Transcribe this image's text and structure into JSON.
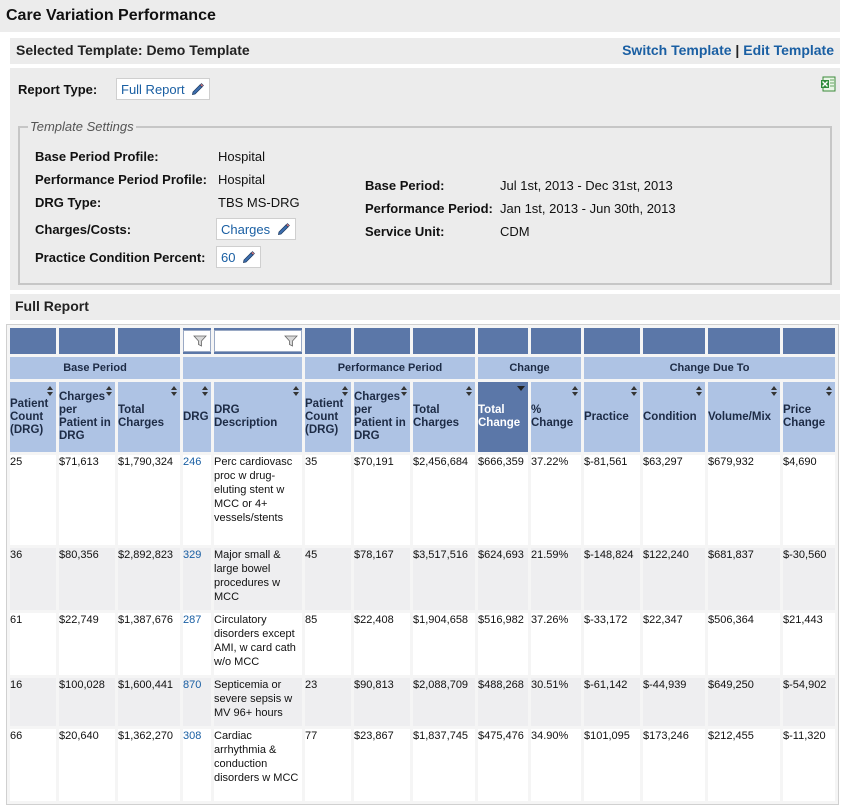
{
  "page_title": "Care Variation Performance",
  "template": {
    "label": "Selected Template: Demo Template",
    "switch_link": "Switch Template",
    "separator": "|",
    "edit_link": "Edit Template"
  },
  "report_type": {
    "label": "Report Type:",
    "value": "Full Report"
  },
  "template_settings": {
    "legend": "Template Settings",
    "left": [
      {
        "label": "Base Period Profile:",
        "value": "Hospital"
      },
      {
        "label": "Performance Period Profile:",
        "value": "Hospital"
      },
      {
        "label": "DRG Type:",
        "value": "TBS MS-DRG"
      },
      {
        "label": "Charges/Costs:",
        "value": "Charges"
      },
      {
        "label": "Practice Condition Percent:",
        "value": "60"
      }
    ],
    "right": [
      {
        "label": "Base Period:",
        "value": "Jul 1st, 2013 - Dec 31st, 2013"
      },
      {
        "label": "Performance Period:",
        "value": "Jan 1st, 2013 - Jun 30th, 2013"
      },
      {
        "label": "Service Unit:",
        "value": "CDM"
      }
    ]
  },
  "section_title": "Full Report",
  "table": {
    "groups": {
      "base": "Base Period",
      "performance": "Performance Period",
      "change": "Change",
      "change_due": "Change Due To"
    },
    "headers": [
      "Patient Count (DRG)",
      "Charges per Patient in DRG",
      "Total Charges",
      "DRG",
      "DRG Description",
      "Patient Count (DRG)",
      "Charges per Patient in DRG",
      "Total Charges",
      "Total Change",
      "% Change",
      "Practice",
      "Condition",
      "Volume/Mix",
      "Price Change"
    ],
    "rows": [
      [
        "25",
        "$71,613",
        "$1,790,324",
        "246",
        "Perc cardiovasc proc w drug-eluting stent w MCC or 4+ vessels/stents",
        "35",
        "$70,191",
        "$2,456,684",
        "$666,359",
        "37.22%",
        "$-81,561",
        "$63,297",
        "$679,932",
        "$4,690"
      ],
      [
        "36",
        "$80,356",
        "$2,892,823",
        "329",
        "Major small & large bowel procedures w MCC",
        "45",
        "$78,167",
        "$3,517,516",
        "$624,693",
        "21.59%",
        "$-148,824",
        "$122,240",
        "$681,837",
        "$-30,560"
      ],
      [
        "61",
        "$22,749",
        "$1,387,676",
        "287",
        "Circulatory disorders except AMI, w card cath w/o MCC",
        "85",
        "$22,408",
        "$1,904,658",
        "$516,982",
        "37.26%",
        "$-33,172",
        "$22,347",
        "$506,364",
        "$21,443"
      ],
      [
        "16",
        "$100,028",
        "$1,600,441",
        "870",
        "Septicemia or severe sepsis w MV 96+ hours",
        "23",
        "$90,813",
        "$2,088,709",
        "$488,268",
        "30.51%",
        "$-61,142",
        "$-44,939",
        "$649,250",
        "$-54,902"
      ],
      [
        "66",
        "$20,640",
        "$1,362,270",
        "308",
        "Cardiac arrhythmia & conduction disorders w MCC",
        "77",
        "$23,867",
        "$1,837,745",
        "$475,476",
        "34.90%",
        "$101,095",
        "$173,246",
        "$212,455",
        "$-11,320"
      ]
    ]
  },
  "colors": {
    "header_dark": "#5b77a8",
    "header_light": "#aec3e4",
    "link": "#1a5fa3",
    "panel": "#ececec"
  },
  "icons": {
    "edit": "pencil-icon",
    "export": "excel-icon",
    "filter": "filter-icon"
  }
}
